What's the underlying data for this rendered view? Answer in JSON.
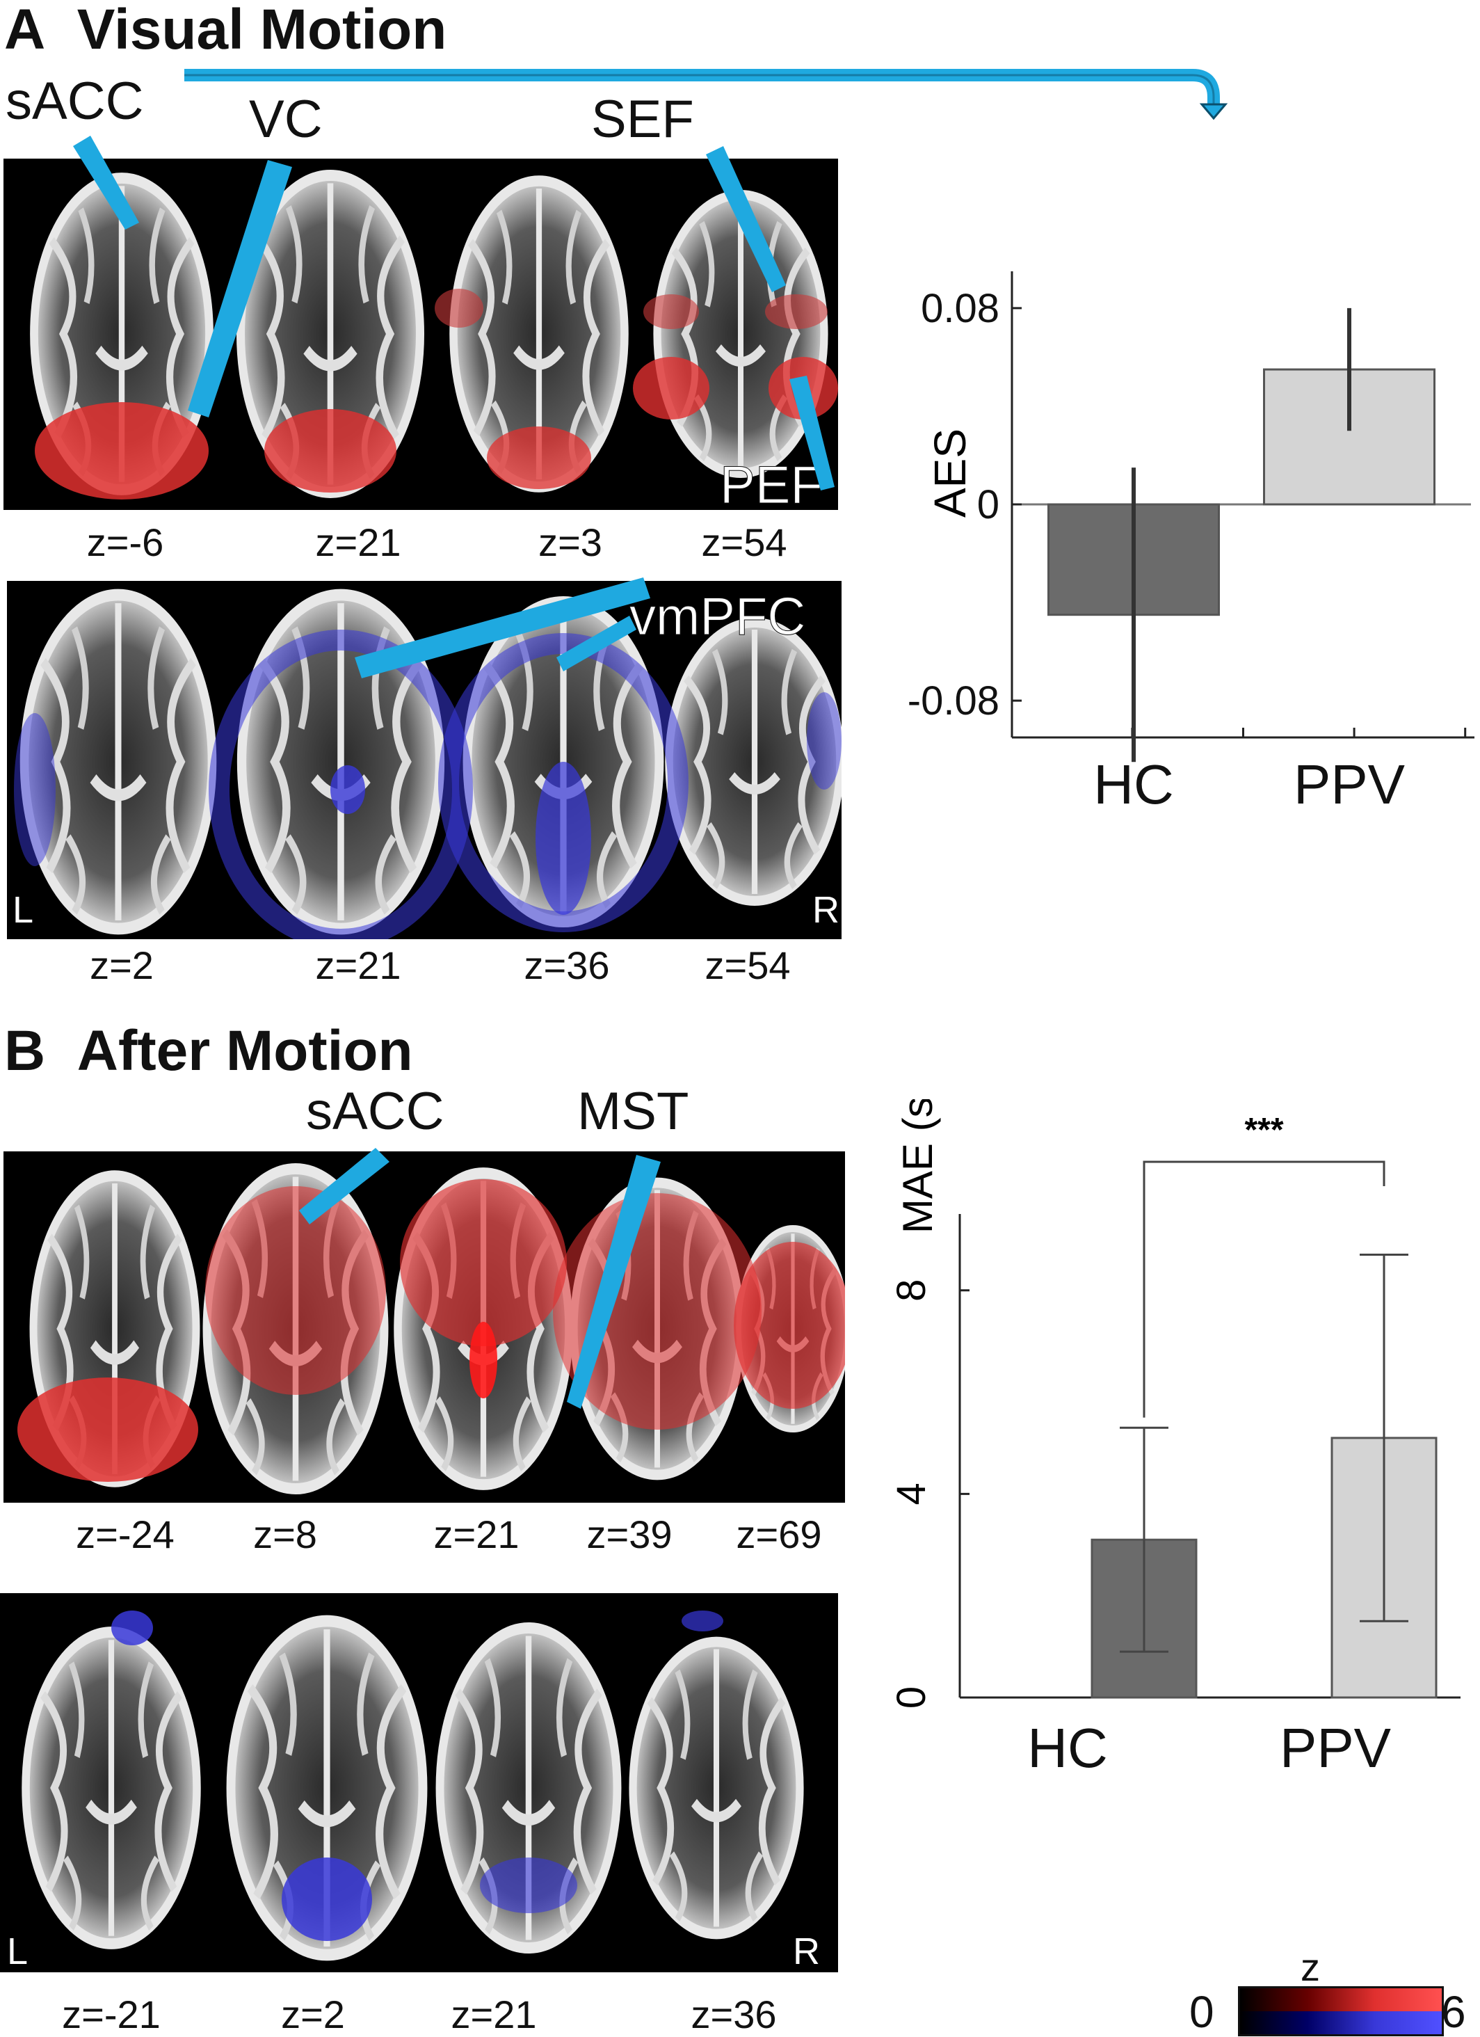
{
  "panelA": {
    "letter": "A",
    "title": "Visual Motion",
    "callouts": {
      "sacc": "sACC",
      "vc": "VC",
      "sef": "SEF",
      "pef": "PEF",
      "vmpfc": "vmPFC"
    },
    "row1_z": [
      "z=-6",
      "z=21",
      "z=3",
      "z=54"
    ],
    "row2_z": [
      "z=2",
      "z=21",
      "z=36",
      "z=54"
    ],
    "orient_left": "L",
    "orient_right": "R"
  },
  "panelB": {
    "letter": "B",
    "title": "After Motion",
    "callouts": {
      "sacc": "sACC",
      "mst": "MST"
    },
    "row1_z": [
      "z=-24",
      "z=8",
      "z=21",
      "z=39",
      "z=69"
    ],
    "row2_z": [
      "z=-21",
      "z=2",
      "z=21",
      "z=36"
    ],
    "orient_left": "L",
    "orient_right": "R"
  },
  "colorbar": {
    "label": "z",
    "min": "0",
    "max": "6"
  },
  "colors": {
    "hc": "#6b6b6b",
    "ppv": "#d4d4d4",
    "arrow": "#1fa9e0",
    "pos": "#e0302f",
    "neg": "#3838d8"
  },
  "chart_data": [
    {
      "type": "bar",
      "categories": [
        "HC",
        "PPV"
      ],
      "values": [
        -0.045,
        0.055
      ],
      "error": [
        0.06,
        0.025
      ],
      "ylabel": "AES",
      "ylim": [
        -0.095,
        0.095
      ],
      "ytick_labels": [
        "0.08",
        "0",
        "-0.08"
      ],
      "yticks": [
        0.08,
        0,
        -0.08
      ]
    },
    {
      "type": "bar",
      "categories": [
        "HC",
        "PPV"
      ],
      "values": [
        3.1,
        5.1
      ],
      "error": [
        2.2,
        3.6
      ],
      "ylabel": "MAE (s)",
      "ylim": [
        0,
        9.5
      ],
      "yticks": [
        0,
        4,
        8
      ],
      "ytick_labels": [
        "0",
        "4",
        "8"
      ],
      "significance": "***"
    }
  ]
}
